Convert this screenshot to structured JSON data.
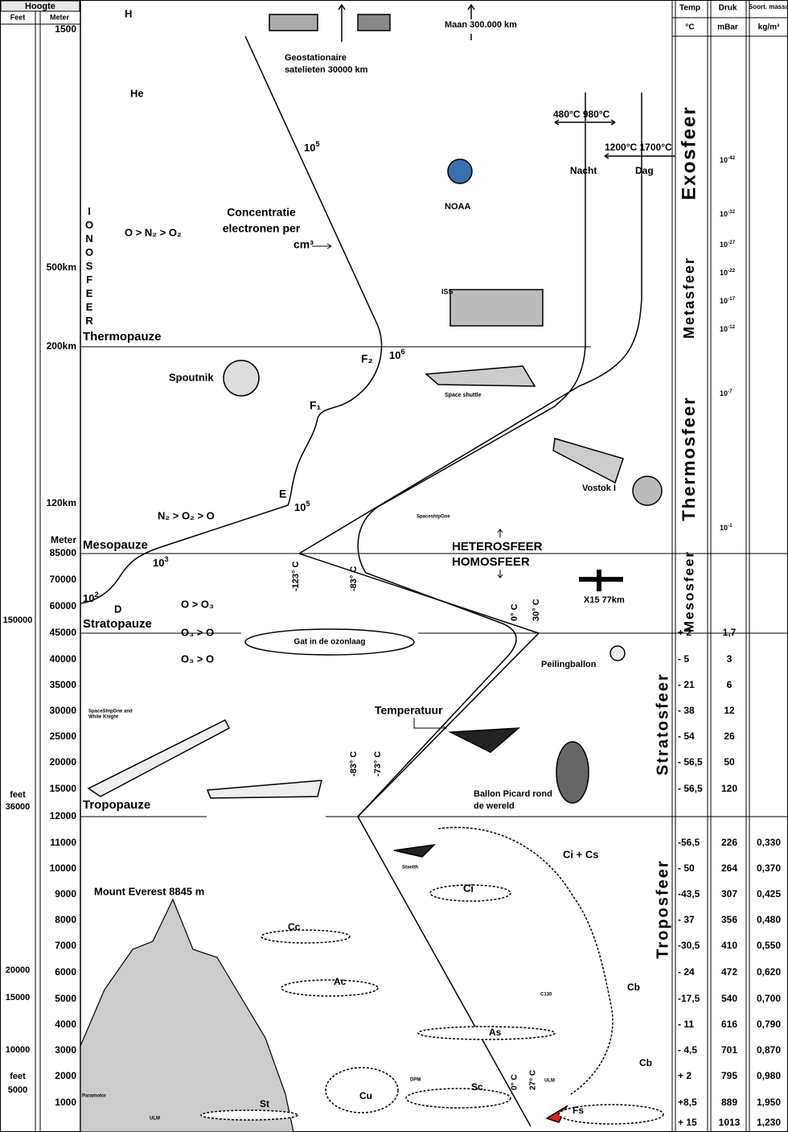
{
  "header": {
    "hoogte": "Hoogte",
    "feet": "Feet",
    "meter": "Meter",
    "temp": "Temp",
    "temp_unit": "°C",
    "druk": "Druk",
    "druk_unit": "mBar",
    "massa": "Soort. massa",
    "massa_unit": "kg/m³"
  },
  "meter_labels": [
    "1500",
    "500km",
    "200km",
    "120km",
    "Meter",
    "85000",
    "70000",
    "60000",
    "45000",
    "40000",
    "35000",
    "30000",
    "25000",
    "20000",
    "15000",
    "12000",
    "11000",
    "10000",
    "9000",
    "8000",
    "7000",
    "6000",
    "5000",
    "4000",
    "3000",
    "2000",
    "1000"
  ],
  "feet_labels": [
    "150000",
    "feet",
    "36000",
    "20000",
    "15000",
    "10000",
    "feet",
    "5000"
  ],
  "temp": [
    "+ 2",
    "- 5",
    "- 21",
    "- 38",
    "- 54",
    "- 56,5",
    "- 56,5",
    "-56,5",
    "- 50",
    "-43,5",
    "- 37",
    "-30,5",
    "- 24",
    "-17,5",
    "- 11",
    "- 4,5",
    "+ 2",
    "+8,5",
    "+ 15"
  ],
  "druk": [
    "1,7",
    "3",
    "6",
    "12",
    "26",
    "50",
    "120",
    "226",
    "264",
    "307",
    "356",
    "410",
    "472",
    "540",
    "616",
    "701",
    "795",
    "889",
    "1013"
  ],
  "massa": [
    "0,330",
    "0,370",
    "0,425",
    "0,480",
    "0,550",
    "0,620",
    "0,700",
    "0,790",
    "0,870",
    "0,980",
    "1,950",
    "1,230"
  ],
  "exponent_pressures": [
    {
      "base": "10",
      "exp": "-42"
    },
    {
      "base": "10",
      "exp": "-32"
    },
    {
      "base": "10",
      "exp": "-27"
    },
    {
      "base": "10",
      "exp": "-22"
    },
    {
      "base": "10",
      "exp": "-17"
    },
    {
      "base": "10",
      "exp": "-12"
    },
    {
      "base": "10",
      "exp": "-7"
    },
    {
      "base": "10",
      "exp": "-1"
    }
  ],
  "layers": [
    "Exosfeer",
    "Metasfeer",
    "Thermosfeer",
    "Mesosfeer",
    "Stratosfeer",
    "Troposfeer"
  ],
  "labels": [
    "H",
    "He",
    "IONOSFEER",
    "O > N₂ > O₂",
    "Concentratie",
    "electronen per",
    "cm³",
    {
      "base": "10",
      "exp": "5"
    },
    {
      "base": "10",
      "exp": "6"
    },
    "F₂",
    "F₁",
    "E",
    {
      "base": "10",
      "exp": "5"
    },
    {
      "base": "10",
      "exp": "3"
    },
    {
      "base": "10",
      "exp": "2"
    },
    "D",
    "Thermopauze",
    "Mesopauze",
    "Stratopauze",
    "Tropopauze",
    "Spoutnik",
    "Geostationaire",
    "satelieten 30000 km",
    "Maan 300.000 km",
    "NOAA",
    "ISS",
    "Space shuttle",
    "Vostok I",
    "SpaceshipOne",
    "HETEROSFEER",
    "HOMOSFEER",
    "X15  77km",
    "480°C 980°C",
    "1200°C 1700°C",
    "Nacht",
    "Dag",
    "-123° C",
    "-83° C",
    "0° C",
    "30° C",
    "N₂ > O₂ >  O",
    "O  >  O₃",
    "O₃ >  O",
    "O₃ >  O",
    "Gat in de ozonlaag",
    "Peilingballon",
    "Temperatuur",
    "SpaceShipOne and",
    "White Knight",
    "Ballon Picard rond",
    "de wereld",
    "-83° C",
    "-73° C",
    "Staelth",
    "Ci + Cs",
    "Ci",
    "Mount Everest 8845 m",
    "Cc",
    "Ac",
    "C130",
    "Cb",
    "As",
    "Cb",
    "St",
    "Cu",
    "Sc",
    "DPM",
    "0° C",
    "27° C",
    "ULM",
    "ULM",
    "Paramotor",
    "Fs"
  ]
}
